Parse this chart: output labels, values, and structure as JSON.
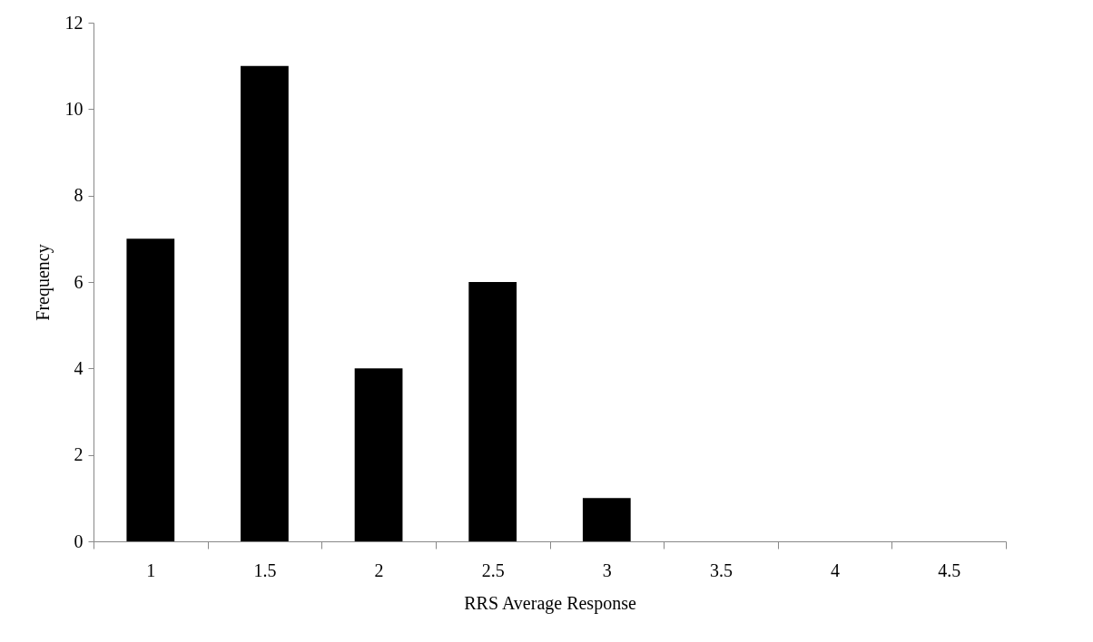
{
  "chart_data": {
    "type": "bar",
    "xlabel": "RRS Average Response",
    "ylabel": "Frequency",
    "categories": [
      "1",
      "1.5",
      "2",
      "2.5",
      "3",
      "3.5",
      "4",
      "4.5"
    ],
    "values": [
      7,
      11,
      4,
      6,
      1,
      0,
      0,
      0
    ],
    "color": "#000000",
    "ylim": [
      0,
      12
    ],
    "yticks": [
      0,
      2,
      4,
      6,
      8,
      10,
      12
    ],
    "grid": false
  }
}
